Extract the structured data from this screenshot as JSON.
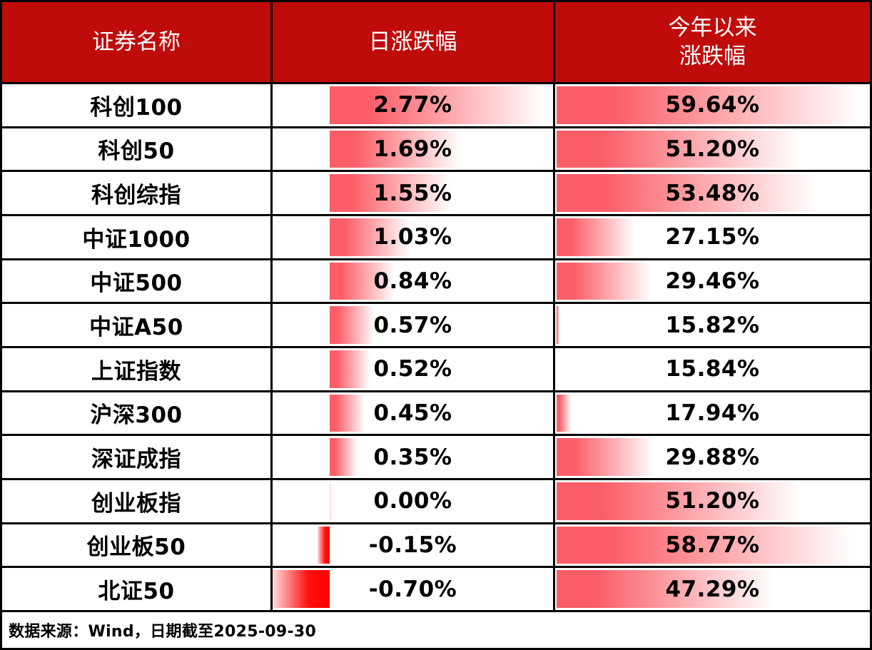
{
  "colors": {
    "header_bg": "#C00B0B",
    "header_text": "#FFFFFF",
    "bar_positive": "#FB5E67",
    "bar_negative": "#FF0000",
    "grid_line": "#000000",
    "value_text": "#000000"
  },
  "layout_hints": {
    "daily_axis_pct": 20.4
  },
  "table": {
    "headers": {
      "name": "证券名称",
      "daily": "日涨跌幅",
      "ytd_line1": "今年以来",
      "ytd_line2": "涨跌幅"
    },
    "rows": [
      {
        "name": "科创100",
        "daily": "2.77%",
        "ytd": "59.64%",
        "daily_bar": {
          "dir": "pos",
          "width_pct": 79.6
        },
        "ytd_bar_pct": 100
      },
      {
        "name": "科创50",
        "daily": "1.69%",
        "ytd": "51.20%",
        "daily_bar": {
          "dir": "pos",
          "width_pct": 48.7
        },
        "ytd_bar_pct": 80.7
      },
      {
        "name": "科创综指",
        "daily": "1.55%",
        "ytd": "53.48%",
        "daily_bar": {
          "dir": "pos",
          "width_pct": 44.7
        },
        "ytd_bar_pct": 85.9
      },
      {
        "name": "中证1000",
        "daily": "1.03%",
        "ytd": "27.15%",
        "daily_bar": {
          "dir": "pos",
          "width_pct": 29.7
        },
        "ytd_bar_pct": 25.9
      },
      {
        "name": "中证500",
        "daily": "0.84%",
        "ytd": "29.46%",
        "daily_bar": {
          "dir": "pos",
          "width_pct": 24.2
        },
        "ytd_bar_pct": 31.1
      },
      {
        "name": "中证A50",
        "daily": "0.57%",
        "ytd": "15.82%",
        "daily_bar": {
          "dir": "pos",
          "width_pct": 16.4
        },
        "ytd_bar_pct": 1.0
      },
      {
        "name": "上证指数",
        "daily": "0.52%",
        "ytd": "15.84%",
        "daily_bar": {
          "dir": "pos",
          "width_pct": 15.0
        },
        "ytd_bar_pct": 0
      },
      {
        "name": "沪深300",
        "daily": "0.45%",
        "ytd": "17.94%",
        "daily_bar": {
          "dir": "pos",
          "width_pct": 13.0
        },
        "ytd_bar_pct": 4.8
      },
      {
        "name": "深证成指",
        "daily": "0.35%",
        "ytd": "29.88%",
        "daily_bar": {
          "dir": "pos",
          "width_pct": 10.1
        },
        "ytd_bar_pct": 32.1
      },
      {
        "name": "创业板指",
        "daily": "0.00%",
        "ytd": "51.20%",
        "daily_bar": {
          "dir": "zero",
          "width_pct": 0.5
        },
        "ytd_bar_pct": 80.7
      },
      {
        "name": "创业板50",
        "daily": "-0.15%",
        "ytd": "58.77%",
        "daily_bar": {
          "dir": "neg",
          "width_pct": 4.3
        },
        "ytd_bar_pct": 98.0
      },
      {
        "name": "北证50",
        "daily": "-0.70%",
        "ytd": "47.29%",
        "daily_bar": {
          "dir": "neg",
          "width_pct": 20.4
        },
        "ytd_bar_pct": 71.8
      }
    ],
    "source_note": "数据来源：Wind，日期截至2025-09-30"
  },
  "chart_data": {
    "type": "bar",
    "title": "",
    "categories": [
      "科创100",
      "科创50",
      "科创综指",
      "中证1000",
      "中证500",
      "中证A50",
      "上证指数",
      "沪深300",
      "深证成指",
      "创业板指",
      "创业板50",
      "北证50"
    ],
    "series": [
      {
        "name": "日涨跌幅",
        "values": [
          2.77,
          1.69,
          1.55,
          1.03,
          0.84,
          0.57,
          0.52,
          0.45,
          0.35,
          0.0,
          -0.15,
          -0.7
        ]
      },
      {
        "name": "今年以来涨跌幅",
        "values": [
          59.64,
          51.2,
          53.48,
          27.15,
          29.46,
          15.82,
          15.84,
          17.94,
          29.88,
          51.2,
          58.77,
          47.29
        ]
      }
    ],
    "value_unit": "percent",
    "daily_bar_axis_range": [
      -0.7,
      2.77
    ],
    "ytd_bar_scale_range": [
      15.82,
      59.64
    ],
    "legend_position": "none",
    "grid": true,
    "annotations": [
      "数据来源：Wind，日期截至2025-09-30"
    ]
  }
}
